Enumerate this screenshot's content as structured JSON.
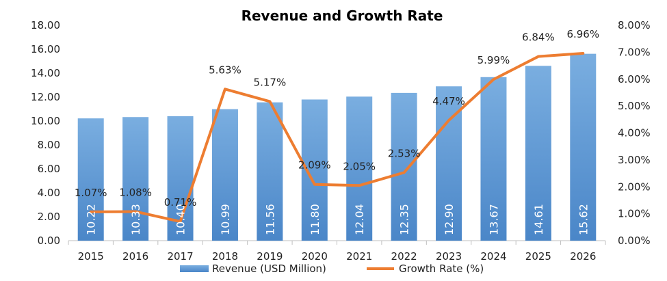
{
  "chart_data": {
    "type": "bar+line",
    "title": "Revenue and Growth Rate",
    "categories": [
      "2015",
      "2016",
      "2017",
      "2018",
      "2019",
      "2020",
      "2021",
      "2022",
      "2023",
      "2024",
      "2025",
      "2026"
    ],
    "series": [
      {
        "name": "Revenue (USD Million)",
        "type": "bar",
        "axis": "left",
        "values": [
          10.22,
          10.33,
          10.4,
          10.99,
          11.56,
          11.8,
          12.04,
          12.35,
          12.9,
          13.67,
          14.61,
          15.62
        ],
        "labels": [
          "10.22",
          "10.33",
          "10.40",
          "10.99",
          "11.56",
          "11.80",
          "12.04",
          "12.35",
          "12.90",
          "13.67",
          "14.61",
          "15.62"
        ],
        "color": "#5b9bd5"
      },
      {
        "name": "Growth Rate (%)",
        "type": "line",
        "axis": "right",
        "values": [
          1.07,
          1.08,
          0.71,
          5.63,
          5.17,
          2.09,
          2.05,
          2.53,
          4.47,
          5.99,
          6.84,
          6.96
        ],
        "labels": [
          "1.07%",
          "1.08%",
          "0.71%",
          "5.63%",
          "5.17%",
          "2.09%",
          "2.05%",
          "2.53%",
          "4.47%",
          "5.99%",
          "6.84%",
          "6.96%"
        ],
        "color": "#ed7d31"
      }
    ],
    "left_axis": {
      "min": 0,
      "max": 18,
      "step": 2,
      "tick_labels": [
        "0.00",
        "2.00",
        "4.00",
        "6.00",
        "8.00",
        "10.00",
        "12.00",
        "14.00",
        "16.00",
        "18.00"
      ]
    },
    "right_axis": {
      "min": 0,
      "max": 8,
      "step": 1,
      "tick_labels": [
        "0.00%",
        "1.00%",
        "2.00%",
        "3.00%",
        "4.00%",
        "5.00%",
        "6.00%",
        "7.00%",
        "8.00%"
      ]
    },
    "legend": {
      "position": "bottom",
      "items": [
        "Revenue (USD Million)",
        "Growth Rate (%)"
      ]
    }
  }
}
